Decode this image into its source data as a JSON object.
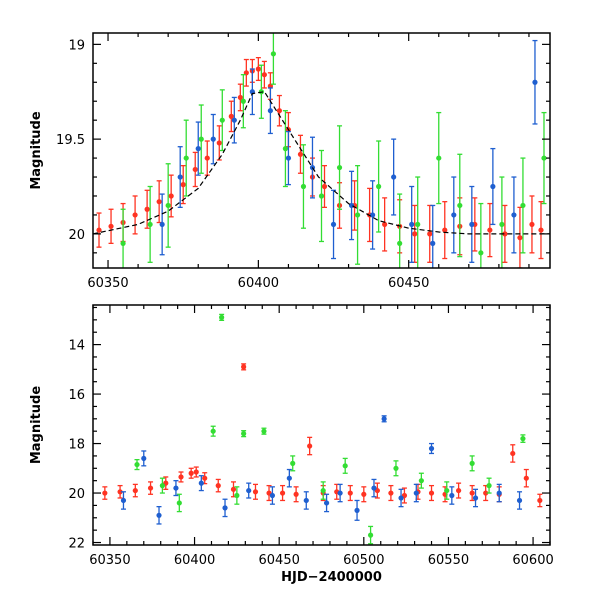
{
  "chart_data": [
    {
      "type": "scatter",
      "panel": "top",
      "title": "",
      "xlabel": "",
      "ylabel": "Magnitude",
      "xlim": [
        60345,
        60497
      ],
      "ylim": [
        20.18,
        18.94
      ],
      "y_inverted": true,
      "x_major_ticks": [
        60350,
        60400,
        60450
      ],
      "y_major_ticks": [
        19,
        19.5,
        20
      ],
      "x_tick_labels": [
        "60350",
        "60400",
        "60450"
      ],
      "y_tick_labels": [
        "19",
        "19.5",
        "20"
      ],
      "series": [
        {
          "name": "red",
          "color": "#ff3322",
          "x": [
            60347,
            60351,
            60355,
            60359,
            60363,
            60367,
            60371,
            60375,
            60379,
            60383,
            60387,
            60391,
            60394,
            60396,
            60398,
            60400,
            60402,
            60404,
            60407,
            60410,
            60414,
            60418,
            60422,
            60427,
            60432,
            60437,
            60442,
            60447,
            60452,
            60457,
            60462,
            60467,
            60472,
            60477,
            60482,
            60487,
            60491,
            60494
          ],
          "y": [
            19.98,
            19.96,
            19.94,
            19.9,
            19.87,
            19.83,
            19.8,
            19.74,
            19.66,
            19.6,
            19.52,
            19.38,
            19.28,
            19.15,
            19.14,
            19.13,
            19.16,
            19.22,
            19.35,
            19.45,
            19.58,
            19.7,
            19.75,
            19.85,
            19.85,
            19.9,
            19.95,
            19.96,
            20.0,
            20.0,
            19.98,
            19.96,
            19.95,
            19.98,
            20.0,
            20.02,
            19.95,
            19.98
          ],
          "err": [
            0.09,
            0.09,
            0.1,
            0.1,
            0.1,
            0.11,
            0.11,
            0.1,
            0.09,
            0.09,
            0.09,
            0.08,
            0.07,
            0.07,
            0.06,
            0.06,
            0.07,
            0.07,
            0.08,
            0.09,
            0.1,
            0.1,
            0.11,
            0.12,
            0.13,
            0.14,
            0.14,
            0.14,
            0.15,
            0.15,
            0.15,
            0.15,
            0.14,
            0.14,
            0.15,
            0.16,
            0.15,
            0.15
          ]
        },
        {
          "name": "green",
          "color": "#33dd33",
          "x": [
            60355,
            60364,
            60370,
            60376,
            60381,
            60388,
            60395,
            60401,
            60405,
            60409,
            60415,
            60421,
            60427,
            60433,
            60440,
            60447,
            60453,
            60460,
            60467,
            60474,
            60481,
            60488,
            60495
          ],
          "y": [
            20.05,
            19.95,
            19.85,
            19.6,
            19.5,
            19.4,
            19.3,
            19.25,
            19.05,
            19.55,
            19.75,
            19.8,
            19.65,
            19.9,
            19.75,
            20.05,
            19.95,
            19.6,
            19.85,
            20.1,
            19.95,
            19.85,
            19.6
          ],
          "err": [
            0.18,
            0.2,
            0.22,
            0.2,
            0.18,
            0.16,
            0.14,
            0.14,
            0.16,
            0.2,
            0.22,
            0.24,
            0.22,
            0.26,
            0.24,
            0.26,
            0.25,
            0.24,
            0.27,
            0.26,
            0.25,
            0.25,
            0.24
          ]
        },
        {
          "name": "blue",
          "color": "#1f5fd0",
          "x": [
            60368,
            60374,
            60380,
            60385,
            60392,
            60398,
            60404,
            60410,
            60418,
            60425,
            60431,
            60438,
            60445,
            60451,
            60458,
            60465,
            60471,
            60478,
            60485,
            60492
          ],
          "y": [
            19.95,
            19.7,
            19.55,
            19.5,
            19.4,
            19.25,
            19.35,
            19.6,
            19.65,
            19.95,
            19.85,
            19.9,
            19.7,
            19.95,
            20.05,
            19.9,
            19.95,
            19.75,
            19.9,
            19.2
          ],
          "err": [
            0.16,
            0.16,
            0.14,
            0.13,
            0.12,
            0.12,
            0.12,
            0.14,
            0.16,
            0.18,
            0.18,
            0.18,
            0.2,
            0.2,
            0.2,
            0.2,
            0.2,
            0.2,
            0.2,
            0.22
          ]
        },
        {
          "name": "model",
          "color": "#000000",
          "type": "dashed-line",
          "x": [
            60345,
            60360,
            60370,
            60380,
            60388,
            60394,
            60398,
            60402,
            60406,
            60412,
            60420,
            60430,
            60440,
            60450,
            60460,
            60470,
            60480,
            60497
          ],
          "y": [
            20.0,
            19.95,
            19.88,
            19.76,
            19.58,
            19.4,
            19.26,
            19.25,
            19.35,
            19.5,
            19.7,
            19.84,
            19.93,
            19.97,
            19.99,
            20.0,
            20.0,
            20.0
          ]
        }
      ]
    },
    {
      "type": "scatter",
      "panel": "bottom",
      "title": "",
      "xlabel": "HJD−2400000",
      "ylabel": "Magnitude",
      "xlim": [
        60340,
        60610
      ],
      "ylim": [
        22.1,
        12.4
      ],
      "y_inverted": true,
      "x_major_ticks": [
        60350,
        60400,
        60450,
        60500,
        60550,
        60600
      ],
      "y_major_ticks": [
        14,
        16,
        18,
        20,
        22
      ],
      "x_tick_labels": [
        "60350",
        "60400",
        "60450",
        "60500",
        "60550",
        "60600"
      ],
      "y_tick_labels": [
        "14",
        "16",
        "18",
        "20",
        "22"
      ],
      "series": [
        {
          "name": "red",
          "color": "#ff3322",
          "x": [
            60347,
            60356,
            60365,
            60374,
            60383,
            60392,
            60398,
            60401,
            60406,
            60414,
            60423,
            60429,
            60436,
            60444,
            60452,
            60460,
            60468,
            60476,
            60484,
            60492,
            60500,
            60508,
            60516,
            60524,
            60532,
            60540,
            60548,
            60556,
            60564,
            60572,
            60580,
            60588,
            60596,
            60604
          ],
          "y": [
            20.0,
            19.95,
            19.9,
            19.8,
            19.6,
            19.35,
            19.2,
            19.15,
            19.4,
            19.7,
            19.85,
            14.9,
            19.95,
            20.0,
            20.0,
            20.05,
            18.1,
            20.0,
            19.95,
            20.0,
            20.05,
            19.9,
            20.0,
            20.1,
            19.95,
            20.0,
            20.05,
            19.9,
            20.0,
            20.0,
            20.05,
            18.4,
            19.4,
            20.3
          ],
          "err": [
            0.25,
            0.25,
            0.25,
            0.25,
            0.25,
            0.2,
            0.2,
            0.2,
            0.22,
            0.25,
            0.3,
            0.12,
            0.3,
            0.3,
            0.3,
            0.3,
            0.35,
            0.3,
            0.3,
            0.3,
            0.3,
            0.3,
            0.3,
            0.3,
            0.3,
            0.3,
            0.3,
            0.3,
            0.3,
            0.3,
            0.3,
            0.35,
            0.35,
            0.25
          ]
        },
        {
          "name": "green",
          "color": "#33dd33",
          "x": [
            60366,
            60381,
            60391,
            60411,
            60416,
            60425,
            60429,
            60441,
            60458,
            60476,
            60489,
            60504,
            60519,
            60534,
            60549,
            60564,
            60574,
            60594
          ],
          "y": [
            18.85,
            19.7,
            20.4,
            17.5,
            12.9,
            20.1,
            17.6,
            17.5,
            18.8,
            19.9,
            18.9,
            21.7,
            19.0,
            19.5,
            19.9,
            18.8,
            19.7,
            17.8
          ],
          "err": [
            0.2,
            0.3,
            0.35,
            0.2,
            0.12,
            0.35,
            0.12,
            0.12,
            0.3,
            0.35,
            0.3,
            0.35,
            0.3,
            0.3,
            0.35,
            0.3,
            0.3,
            0.15
          ]
        },
        {
          "name": "blue",
          "color": "#1f5fd0",
          "x": [
            60358,
            60370,
            60379,
            60389,
            60404,
            60418,
            60432,
            60446,
            60456,
            60466,
            60478,
            60486,
            60496,
            60506,
            60512,
            60522,
            60531,
            60540,
            60552,
            60566,
            60580,
            60592
          ],
          "y": [
            20.3,
            18.6,
            20.9,
            19.8,
            19.6,
            20.6,
            19.9,
            20.1,
            19.4,
            20.3,
            20.4,
            20.0,
            20.7,
            19.8,
            17.0,
            20.2,
            20.0,
            18.2,
            20.1,
            20.2,
            20.0,
            20.3
          ],
          "err": [
            0.35,
            0.3,
            0.35,
            0.3,
            0.3,
            0.35,
            0.3,
            0.35,
            0.35,
            0.35,
            0.35,
            0.35,
            0.4,
            0.35,
            0.12,
            0.35,
            0.35,
            0.2,
            0.35,
            0.35,
            0.35,
            0.35
          ]
        }
      ]
    }
  ]
}
